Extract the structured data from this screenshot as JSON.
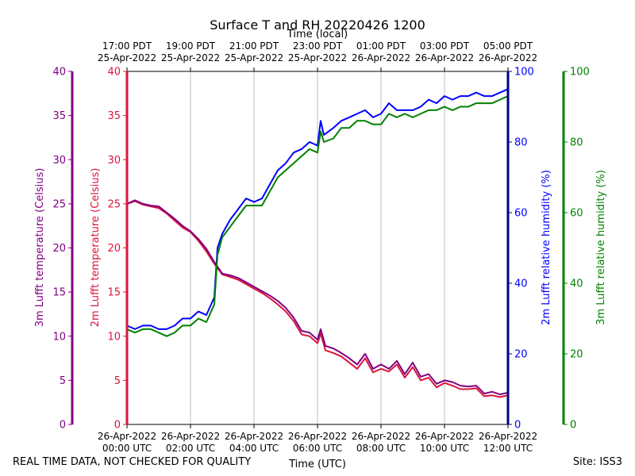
{
  "chart_data": {
    "type": "line",
    "title": "Surface T and RH 20220426 1200",
    "top_axis_label": "Time (local)",
    "xlabel": "Time (UTC)",
    "footer_left": "REAL TIME DATA, NOT CHECKED FOR QUALITY",
    "footer_right": "Site: ISS3",
    "x_ticks_utc": [
      {
        "hour": 0,
        "line1": "26-Apr-2022",
        "line2": "00:00 UTC"
      },
      {
        "hour": 2,
        "line1": "26-Apr-2022",
        "line2": "02:00 UTC"
      },
      {
        "hour": 4,
        "line1": "26-Apr-2022",
        "line2": "04:00 UTC"
      },
      {
        "hour": 6,
        "line1": "26-Apr-2022",
        "line2": "06:00 UTC"
      },
      {
        "hour": 8,
        "line1": "26-Apr-2022",
        "line2": "08:00 UTC"
      },
      {
        "hour": 10,
        "line1": "26-Apr-2022",
        "line2": "10:00 UTC"
      },
      {
        "hour": 12,
        "line1": "26-Apr-2022",
        "line2": "12:00 UTC"
      }
    ],
    "x_ticks_local": [
      {
        "hour": 0,
        "line1": "17:00 PDT",
        "line2": "25-Apr-2022"
      },
      {
        "hour": 2,
        "line1": "19:00 PDT",
        "line2": "25-Apr-2022"
      },
      {
        "hour": 4,
        "line1": "21:00 PDT",
        "line2": "25-Apr-2022"
      },
      {
        "hour": 6,
        "line1": "23:00 PDT",
        "line2": "25-Apr-2022"
      },
      {
        "hour": 8,
        "line1": "01:00 PDT",
        "line2": "26-Apr-2022"
      },
      {
        "hour": 10,
        "line1": "03:00 PDT",
        "line2": "26-Apr-2022"
      },
      {
        "hour": 12,
        "line1": "05:00 PDT",
        "line2": "26-Apr-2022"
      }
    ],
    "xlim": [
      0,
      12
    ],
    "grid": true,
    "axes": {
      "temp3m": {
        "label": "3m Lufft temperature (Celsius)",
        "color": "#800080",
        "ylim": [
          0,
          40
        ],
        "ticks": [
          0,
          5,
          10,
          15,
          20,
          25,
          30,
          35,
          40
        ]
      },
      "temp2m": {
        "label": "2m Lufft temperature (Celsius)",
        "color": "#dc143c",
        "ylim": [
          0,
          40
        ],
        "ticks": [
          0,
          5,
          10,
          15,
          20,
          25,
          30,
          35,
          40
        ]
      },
      "rh2m": {
        "label": "2m Lufft relative humidity (%)",
        "color": "#0000ff",
        "axis_color": "#00008b",
        "ylim": [
          0,
          100
        ],
        "ticks": [
          0,
          20,
          40,
          60,
          80,
          100
        ]
      },
      "rh3m": {
        "label": "3m Lufft relative humidity (%)",
        "color": "#008000",
        "ylim": [
          0,
          100
        ],
        "ticks": [
          0,
          20,
          40,
          60,
          80,
          100
        ]
      }
    },
    "series": [
      {
        "axis": "temp2m",
        "color": "#dc143c",
        "x": [
          0,
          0.25,
          0.5,
          0.75,
          1,
          1.25,
          1.5,
          1.75,
          2,
          2.25,
          2.5,
          2.75,
          3,
          3.25,
          3.5,
          3.75,
          4,
          4.25,
          4.5,
          4.75,
          5,
          5.25,
          5.5,
          5.75,
          6,
          6.1,
          6.25,
          6.5,
          6.75,
          7,
          7.25,
          7.5,
          7.75,
          8,
          8.25,
          8.5,
          8.75,
          9,
          9.25,
          9.5,
          9.75,
          10,
          10.25,
          10.5,
          10.75,
          11,
          11.25,
          11.5,
          11.75,
          12
        ],
        "y": [
          25.0,
          25.3,
          24.9,
          24.7,
          24.5,
          23.9,
          23.1,
          22.3,
          21.8,
          20.8,
          19.6,
          18.2,
          17.0,
          16.7,
          16.4,
          15.9,
          15.4,
          14.9,
          14.3,
          13.6,
          12.8,
          11.7,
          10.2,
          10.0,
          9.2,
          10.3,
          8.4,
          8.1,
          7.7,
          7.0,
          6.3,
          7.5,
          5.9,
          6.3,
          6.0,
          6.8,
          5.3,
          6.5,
          5.0,
          5.3,
          4.2,
          4.7,
          4.4,
          4.0,
          4.0,
          4.1,
          3.2,
          3.3,
          3.1,
          3.3
        ]
      },
      {
        "axis": "temp3m",
        "color": "#800080",
        "x": [
          0,
          0.25,
          0.5,
          0.75,
          1,
          1.25,
          1.5,
          1.75,
          2,
          2.25,
          2.5,
          2.75,
          3,
          3.25,
          3.5,
          3.75,
          4,
          4.25,
          4.5,
          4.75,
          5,
          5.25,
          5.5,
          5.75,
          6,
          6.1,
          6.25,
          6.5,
          6.75,
          7,
          7.25,
          7.5,
          7.75,
          8,
          8.25,
          8.5,
          8.75,
          9,
          9.25,
          9.5,
          9.75,
          10,
          10.25,
          10.5,
          10.75,
          11,
          11.25,
          11.5,
          11.75,
          12
        ],
        "y": [
          25.0,
          25.4,
          25.0,
          24.8,
          24.7,
          24.0,
          23.3,
          22.5,
          21.9,
          21.0,
          19.9,
          18.4,
          17.1,
          16.9,
          16.6,
          16.1,
          15.6,
          15.1,
          14.6,
          14.0,
          13.2,
          12.1,
          10.6,
          10.4,
          9.6,
          10.8,
          8.9,
          8.6,
          8.1,
          7.5,
          6.8,
          8.0,
          6.3,
          6.8,
          6.3,
          7.2,
          5.7,
          7.0,
          5.4,
          5.7,
          4.6,
          5.0,
          4.8,
          4.4,
          4.3,
          4.4,
          3.5,
          3.7,
          3.4,
          3.6
        ]
      },
      {
        "axis": "rh2m",
        "color": "#0000ff",
        "x": [
          0,
          0.25,
          0.5,
          0.75,
          1,
          1.25,
          1.5,
          1.75,
          2,
          2.25,
          2.5,
          2.6,
          2.75,
          2.85,
          3,
          3.25,
          3.5,
          3.75,
          4,
          4.25,
          4.5,
          4.75,
          5,
          5.25,
          5.5,
          5.75,
          6,
          6.1,
          6.2,
          6.5,
          6.75,
          7,
          7.25,
          7.5,
          7.75,
          8,
          8.25,
          8.5,
          8.75,
          9,
          9.25,
          9.5,
          9.75,
          10,
          10.25,
          10.5,
          10.75,
          11,
          11.25,
          11.5,
          11.75,
          12
        ],
        "y": [
          28,
          27,
          28,
          28,
          27,
          27,
          28,
          30,
          30,
          32,
          31,
          33,
          36,
          50,
          54,
          58,
          61,
          64,
          63,
          64,
          68,
          72,
          74,
          77,
          78,
          80,
          79,
          86,
          82,
          84,
          86,
          87,
          88,
          89,
          87,
          88,
          91,
          89,
          89,
          89,
          90,
          92,
          91,
          93,
          92,
          93,
          93,
          94,
          93,
          93,
          94,
          95
        ]
      },
      {
        "axis": "rh3m",
        "color": "#008000",
        "x": [
          0,
          0.25,
          0.5,
          0.75,
          1,
          1.25,
          1.5,
          1.75,
          2,
          2.25,
          2.5,
          2.6,
          2.75,
          2.85,
          3,
          3.25,
          3.5,
          3.75,
          4,
          4.25,
          4.5,
          4.75,
          5,
          5.25,
          5.5,
          5.75,
          6,
          6.1,
          6.2,
          6.5,
          6.75,
          7,
          7.25,
          7.5,
          7.75,
          8,
          8.25,
          8.5,
          8.75,
          9,
          9.25,
          9.5,
          9.75,
          10,
          10.25,
          10.5,
          10.75,
          11,
          11.25,
          11.5,
          11.75,
          12
        ],
        "y": [
          27,
          26,
          27,
          27,
          26,
          25,
          26,
          28,
          28,
          30,
          29,
          31,
          34,
          48,
          53,
          56,
          59,
          62,
          62,
          62,
          66,
          70,
          72,
          74,
          76,
          78,
          77,
          83,
          80,
          81,
          84,
          84,
          86,
          86,
          85,
          85,
          88,
          87,
          88,
          87,
          88,
          89,
          89,
          90,
          89,
          90,
          90,
          91,
          91,
          91,
          92,
          93
        ]
      }
    ]
  }
}
